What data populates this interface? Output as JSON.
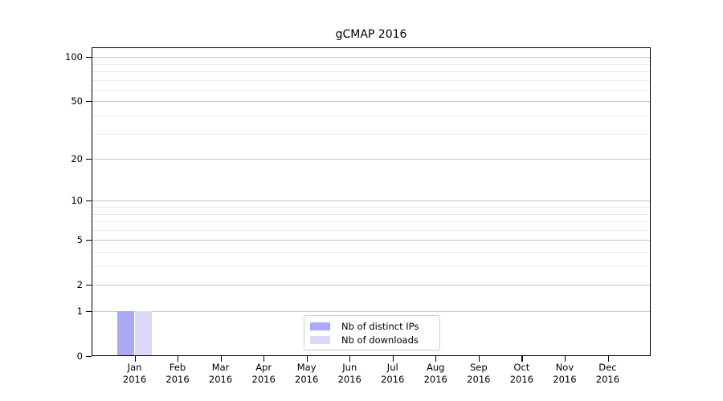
{
  "chart_data": {
    "type": "bar",
    "title": "gCMAP 2016",
    "categories": [
      {
        "month": "Jan",
        "year": "2016"
      },
      {
        "month": "Feb",
        "year": "2016"
      },
      {
        "month": "Mar",
        "year": "2016"
      },
      {
        "month": "Apr",
        "year": "2016"
      },
      {
        "month": "May",
        "year": "2016"
      },
      {
        "month": "Jun",
        "year": "2016"
      },
      {
        "month": "Jul",
        "year": "2016"
      },
      {
        "month": "Aug",
        "year": "2016"
      },
      {
        "month": "Sep",
        "year": "2016"
      },
      {
        "month": "Oct",
        "year": "2016"
      },
      {
        "month": "Nov",
        "year": "2016"
      },
      {
        "month": "Dec",
        "year": "2016"
      }
    ],
    "series": [
      {
        "name": "Nb of distinct IPs",
        "color": "#a9a9f5",
        "values": [
          1,
          0,
          0,
          0,
          0,
          0,
          0,
          0,
          0,
          0,
          0,
          0
        ]
      },
      {
        "name": "Nb of downloads",
        "color": "#d9d9f7",
        "values": [
          1,
          0,
          0,
          0,
          0,
          0,
          0,
          0,
          0,
          0,
          0,
          0
        ]
      }
    ],
    "y_axis": {
      "scale": "log1p",
      "major_ticks": [
        0,
        1,
        2,
        5,
        10,
        20,
        50,
        100
      ],
      "minor_gridlines": [
        3,
        4,
        6,
        7,
        8,
        9,
        30,
        40,
        60,
        70,
        80,
        90
      ],
      "range_top": 116.3
    },
    "xlabel": "",
    "ylabel": "",
    "grid": true,
    "legend_position": "bottom-center"
  },
  "colors": {
    "background": "#ffffff",
    "axis": "#000000",
    "grid_major": "#c8c8c8",
    "grid_minor": "#eaeaea",
    "legend_border": "#cccccc",
    "text": "#000000"
  }
}
